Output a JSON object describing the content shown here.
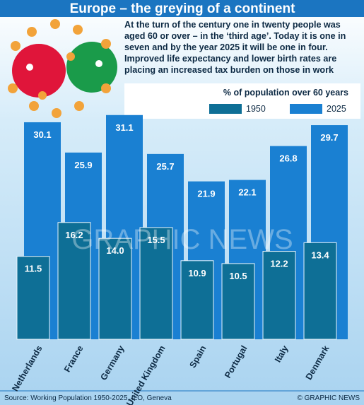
{
  "chart_data": {
    "type": "bar",
    "title": "Europe – the greying of a continent",
    "subtitle": "At the turn of the century one in twenty people was aged 60 or over – in the ‘third age’. Today it is one in seven and by the year 2025 it will be one in four. Improved life expectancy and lower birth rates are placing an increased tax burden on those in work",
    "legend_title": "% of population over 60 years",
    "categories": [
      "Netherlands",
      "France",
      "Germany",
      "United Kingdom",
      "Spain",
      "Portugal",
      "Italy",
      "Denmark"
    ],
    "series": [
      {
        "name": "1950",
        "color": "#0e6f96",
        "values": [
          11.5,
          16.2,
          14,
          15.5,
          10.9,
          10.5,
          12.2,
          13.4
        ],
        "value_labels": [
          "11.5",
          "16.2",
          "14.0",
          "15.5",
          "10.9",
          "10.5",
          "12.2",
          "13.4"
        ]
      },
      {
        "name": "2025",
        "color": "#1a80d2",
        "values": [
          30.1,
          25.9,
          31.1,
          25.7,
          21.9,
          22.1,
          26.8,
          29.7
        ],
        "value_labels": [
          "30.1",
          "25.9",
          "31.1",
          "25.7",
          "21.9",
          "22.1",
          "26.8",
          "29.7"
        ]
      }
    ],
    "source": "Source: Working Population 1950-2025, ILO, Geneva",
    "credit": "© GRAPHIC NEWS",
    "watermark": "GRAPHIC NEWS"
  }
}
